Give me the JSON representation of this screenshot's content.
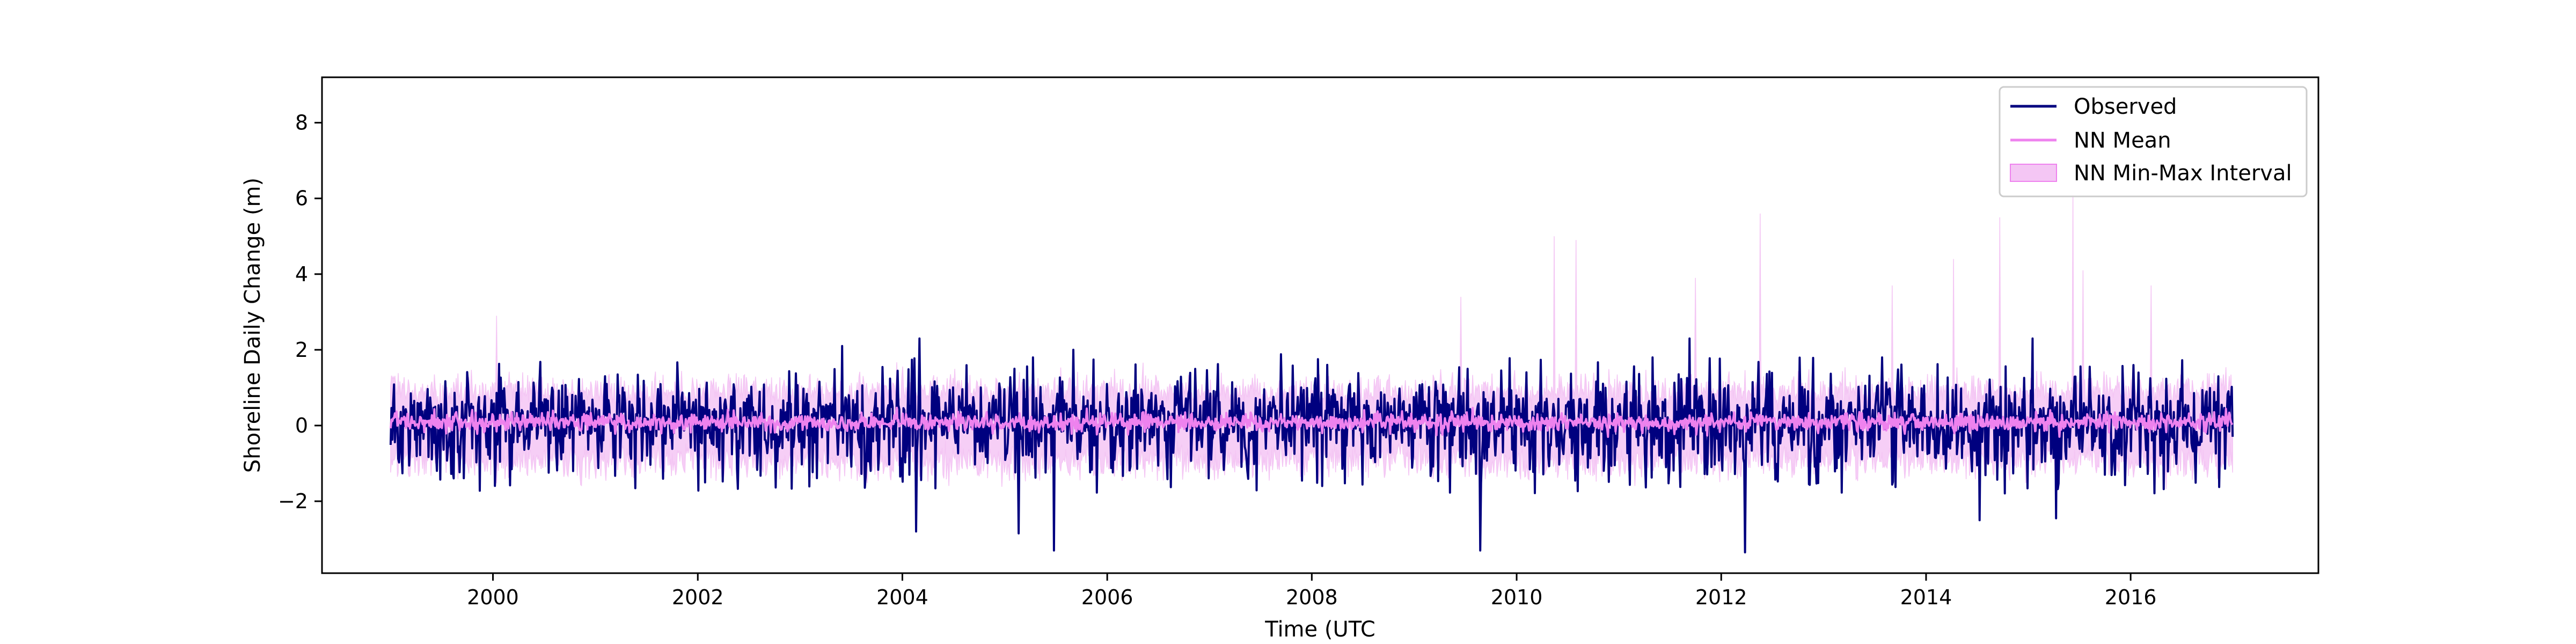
{
  "chart_data": {
    "type": "line",
    "title": "",
    "xlabel": "Time (UTC",
    "ylabel": "Shoreline Daily Change (m)",
    "xlim": [
      "1998-05-01",
      "2017-11-01"
    ],
    "ylim": [
      -3.9,
      9.2
    ],
    "x_ticks": [
      "2000",
      "2002",
      "2004",
      "2006",
      "2008",
      "2010",
      "2012",
      "2014",
      "2016"
    ],
    "y_ticks": [
      "−2",
      "0",
      "2",
      "4",
      "6",
      "8"
    ],
    "y_tick_values": [
      -2,
      0,
      2,
      4,
      6,
      8
    ],
    "x_range": [
      "1999-01-01",
      "2016-12-31"
    ],
    "grid": false,
    "legend_position": "top-right",
    "legend": [
      "Observed",
      "NN Mean",
      "NN Min-Max Interval"
    ],
    "colors": {
      "observed": "#00007f",
      "nn_mean": "#ee82ee",
      "interval": "#f4c6f4"
    },
    "series": [
      {
        "name": "Observed",
        "kind": "line",
        "typical_amplitude": 0.8,
        "notable_points": [
          {
            "x": "2003-06-01",
            "y": 2.1
          },
          {
            "x": "2004-03-01",
            "y": 2.3
          },
          {
            "x": "2004-02-20",
            "y": -2.8
          },
          {
            "x": "2005-02-20",
            "y": -2.85
          },
          {
            "x": "2005-06-25",
            "y": -3.3
          },
          {
            "x": "2005-09-01",
            "y": 2.0
          },
          {
            "x": "2009-08-25",
            "y": -3.3
          },
          {
            "x": "2011-09-10",
            "y": 2.3
          },
          {
            "x": "2012-03-25",
            "y": -3.35
          },
          {
            "x": "2014-07-10",
            "y": -2.5
          },
          {
            "x": "2015-01-15",
            "y": 2.3
          },
          {
            "x": "2015-04-10",
            "y": -2.45
          }
        ]
      },
      {
        "name": "NN Mean",
        "kind": "line",
        "typical_amplitude": 0.25
      },
      {
        "name": "NN Min-Max Interval",
        "kind": "band",
        "typical_half_width": 1.1,
        "notable_upper_points": [
          {
            "x": "2000-01-15",
            "y": 2.9
          },
          {
            "x": "2009-06-15",
            "y": 3.4
          },
          {
            "x": "2010-05-15",
            "y": 5.0
          },
          {
            "x": "2010-08-01",
            "y": 4.9
          },
          {
            "x": "2011-10-01",
            "y": 3.9
          },
          {
            "x": "2012-05-20",
            "y": 5.6
          },
          {
            "x": "2013-09-01",
            "y": 3.7
          },
          {
            "x": "2014-04-10",
            "y": 4.4
          },
          {
            "x": "2014-09-20",
            "y": 5.5
          },
          {
            "x": "2015-06-10",
            "y": 6.1
          },
          {
            "x": "2015-07-15",
            "y": 4.1
          },
          {
            "x": "2016-03-15",
            "y": 3.7
          }
        ]
      }
    ]
  }
}
